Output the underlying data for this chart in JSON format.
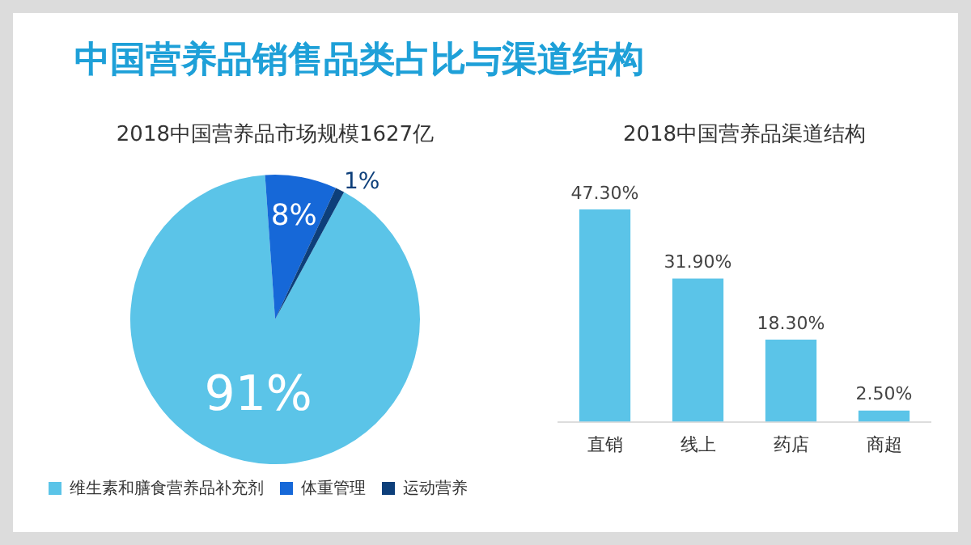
{
  "chart_data": [
    {
      "type": "pie",
      "title": "中国营养品销售品类占比与渠道结构",
      "subtitle": "2018中国营养品市场规模1627亿",
      "categories": [
        "维生素和膳食营养品补充剂",
        "体重管理",
        "运动营养"
      ],
      "values": [
        91,
        8,
        1
      ],
      "colors": [
        "#5bc4e8",
        "#1668d8",
        "#0d3f7a"
      ],
      "value_labels": [
        "91%",
        "8%",
        "1%"
      ],
      "legend": "bottom left"
    },
    {
      "type": "bar",
      "title": "2018中国营养品渠道结构",
      "categories": [
        "直销",
        "线上",
        "药店",
        "商超"
      ],
      "values": [
        47.3,
        31.9,
        18.3,
        2.5
      ],
      "color": "#5bc4e8",
      "value_labels": [
        "47.30%",
        "31.90%",
        "18.30%",
        "2.50%"
      ],
      "grid": false
    }
  ]
}
